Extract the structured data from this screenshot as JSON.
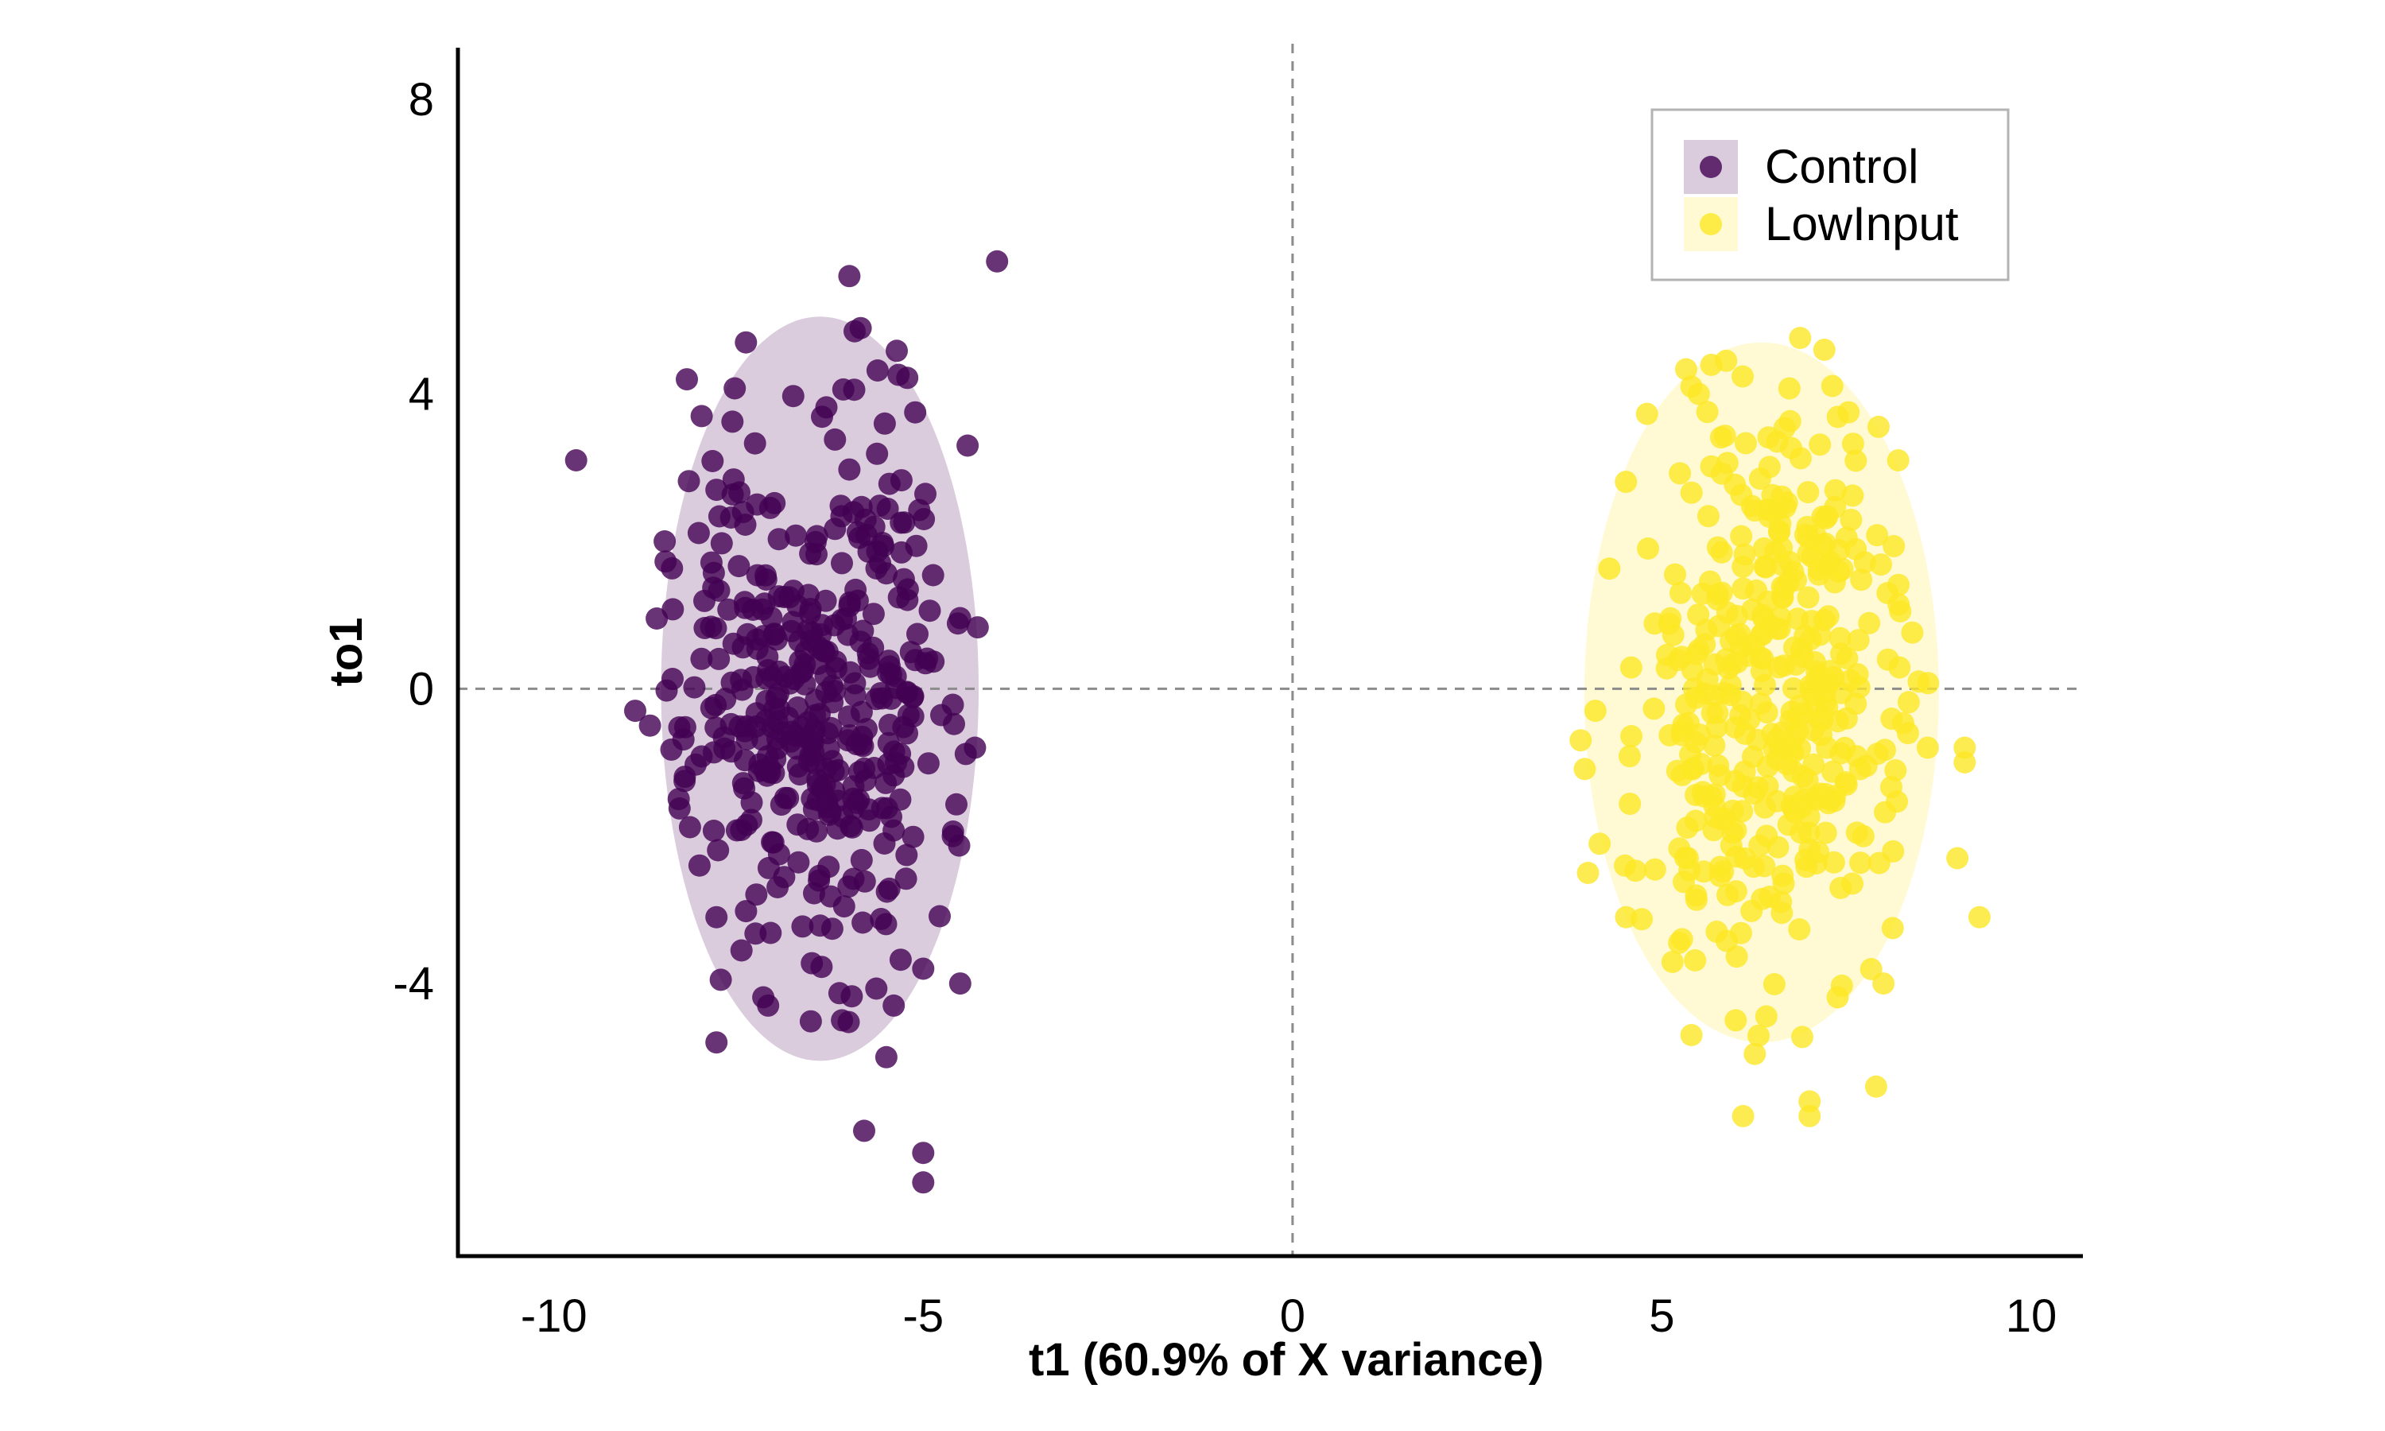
{
  "chart_data": {
    "type": "scatter",
    "title": "",
    "xlabel": "t1 (60.9% of X variance)",
    "ylabel": "to1",
    "xlim": [
      -11.3,
      10.7
    ],
    "ylim": [
      -7.7,
      8.7
    ],
    "xticks": [
      {
        "value": -10,
        "label": "-10"
      },
      {
        "value": -5,
        "label": "-5"
      },
      {
        "value": 0,
        "label": "0"
      },
      {
        "value": 5,
        "label": "5"
      },
      {
        "value": 10,
        "label": "10"
      }
    ],
    "yticks": [
      {
        "value": 8,
        "label": "8"
      },
      {
        "value": 4,
        "label": "4"
      },
      {
        "value": 0,
        "label": "0"
      },
      {
        "value": -4,
        "label": "-4"
      }
    ],
    "grid": false,
    "reference_lines": {
      "x": 0,
      "y": 0,
      "style": "dashed"
    },
    "legend": {
      "placement": "top-right"
    },
    "series": [
      {
        "name": "Control",
        "color": "#440154",
        "ellipse": {
          "cx": -6.4,
          "cy": 0.0,
          "rx": 2.15,
          "ry": 5.05
        },
        "seed": 7,
        "count": 400,
        "mean": [
          -6.4,
          0.0
        ],
        "sd": [
          0.95,
          2.0
        ],
        "outliers": [
          [
            -9.7,
            3.1
          ],
          [
            -4.0,
            5.8
          ],
          [
            -6.0,
            5.6
          ],
          [
            -8.2,
            4.2
          ],
          [
            -7.4,
            4.7
          ],
          [
            -8.0,
            3.7
          ],
          [
            -8.5,
            2.0
          ],
          [
            -7.8,
            2.7
          ],
          [
            -4.4,
            3.3
          ],
          [
            -8.9,
            -0.3
          ],
          [
            -8.7,
            -0.5
          ],
          [
            -4.3,
            -0.8
          ],
          [
            -7.8,
            -3.1
          ],
          [
            -7.1,
            -4.3
          ],
          [
            -6.1,
            -4.5
          ],
          [
            -7.8,
            -4.8
          ],
          [
            -5.5,
            -5.0
          ],
          [
            -5.8,
            -6.0
          ],
          [
            -5.0,
            -6.3
          ],
          [
            -5.0,
            -6.7
          ],
          [
            -4.5,
            -4.0
          ],
          [
            -5.0,
            -3.8
          ],
          [
            -5.4,
            -4.3
          ],
          [
            -4.6,
            -2.0
          ]
        ]
      },
      {
        "name": "LowInput",
        "color": "#FDE725",
        "ellipse": {
          "cx": 6.35,
          "cy": -0.05,
          "rx": 2.4,
          "ry": 4.75
        },
        "seed": 13,
        "count": 400,
        "mean": [
          6.35,
          0.0
        ],
        "sd": [
          1.0,
          2.0
        ],
        "outliers": [
          [
            7.2,
            4.6
          ],
          [
            5.4,
            4.1
          ],
          [
            5.5,
            4.0
          ],
          [
            8.2,
            3.1
          ],
          [
            9.1,
            -1.0
          ],
          [
            9.1,
            -0.8
          ],
          [
            9.0,
            -2.3
          ],
          [
            9.3,
            -3.1
          ],
          [
            8.6,
            -0.8
          ],
          [
            8.0,
            -4.0
          ],
          [
            7.9,
            -5.4
          ],
          [
            7.0,
            -5.6
          ],
          [
            7.0,
            -5.8
          ],
          [
            6.1,
            -5.8
          ],
          [
            5.4,
            -4.7
          ],
          [
            3.9,
            -0.7
          ],
          [
            4.0,
            -2.5
          ],
          [
            4.1,
            -0.3
          ],
          [
            4.5,
            -2.4
          ],
          [
            6.0,
            -4.5
          ]
        ]
      }
    ]
  }
}
